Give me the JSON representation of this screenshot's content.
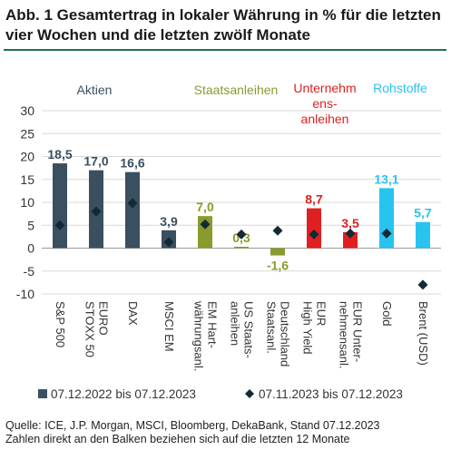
{
  "title": "Abb. 1 Gesamtertrag in lokaler Währung in % für die letzten vier Wochen und die letzten zwölf Monate",
  "footer": {
    "source": "Quelle: ICE, J.P. Morgan, MSCI, Bloomberg, DekaBank, Stand 07.12.2023",
    "note": "Zahlen direkt an den Balken beziehen sich auf die letzten 12 Monate"
  },
  "chart_data": {
    "type": "bar",
    "ylim": [
      -10,
      30
    ],
    "yticks": [
      -10,
      -5,
      0,
      5,
      10,
      15,
      20,
      25,
      30
    ],
    "grid": true,
    "legend_placement": "bottom",
    "groups": [
      {
        "label": "Aktien",
        "color": "#3a4f5f"
      },
      {
        "label": "Staatsanleihen",
        "color": "#8b9a2e"
      },
      {
        "label": "Unternehm\nens-\nanleihen",
        "color": "#e02020"
      },
      {
        "label": "Rohstoffe",
        "color": "#29c3f0"
      }
    ],
    "categories": [
      "S&P 500",
      "EURO\nSTOXX 50",
      "DAX",
      "MSCI EM",
      "EM Hart-\nwährungsanl.",
      "US Staats-\nanleihen",
      "Deutschland\nStaatsanl.",
      "EUR\nHigh Yield",
      "EUR Unter-\nnehmensanl.",
      "Gold",
      "Brent (USD)"
    ],
    "category_group": [
      0,
      0,
      0,
      0,
      1,
      1,
      1,
      2,
      2,
      3,
      3
    ],
    "series": [
      {
        "name": "07.12.2022 bis 07.12.2023",
        "kind": "bar",
        "values": [
          18.5,
          17.0,
          16.6,
          3.9,
          7.0,
          0.3,
          -1.6,
          8.7,
          3.5,
          13.1,
          5.7
        ],
        "labels": [
          "18,5",
          "17,0",
          "16,6",
          "3,9",
          "7,0",
          "0,3",
          "-1,6",
          "8,7",
          "3,5",
          "13,1",
          "5,7"
        ]
      },
      {
        "name": "07.11.2023 bis 07.12.2023",
        "kind": "marker",
        "values": [
          5.0,
          8.0,
          9.8,
          1.3,
          5.2,
          3.0,
          3.8,
          3.0,
          3.2,
          3.2,
          -8.0
        ]
      }
    ]
  }
}
